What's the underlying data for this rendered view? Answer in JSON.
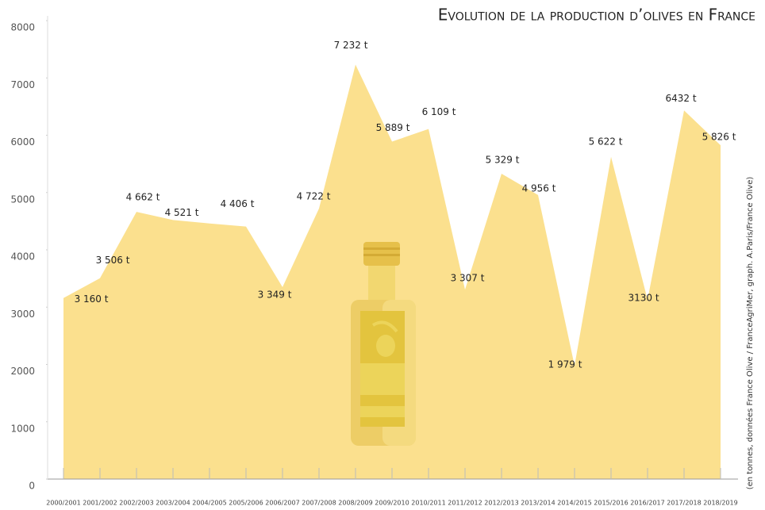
{
  "chart_data": {
    "type": "area",
    "title": "Evolution de la production d’olives en France",
    "note": "(en tonnes, données France Olive / FranceAgriMer, graph. A.Paris/France Olive)",
    "categories": [
      "2000/2001",
      "2001/2002",
      "2002/2003",
      "2003/2004",
      "2004/2005",
      "2005/2006",
      "2006/2007",
      "2007/2008",
      "2008/2009",
      "2009/2010",
      "2010/2011",
      "2011/2012",
      "2012/2013",
      "2013/2014",
      "2014/2015",
      "2015/2016",
      "2016/2017",
      "2017/2018",
      "2018/2019"
    ],
    "values": [
      3160,
      3506,
      4662,
      4521,
      4460,
      4406,
      3349,
      4722,
      7232,
      5889,
      6109,
      3307,
      5329,
      4956,
      1979,
      5622,
      3130,
      6432,
      5826
    ],
    "value_labels": [
      "3 160 t",
      "3 506 t",
      "4 662 t",
      "4 521 t",
      null,
      "4 406 t",
      "3 349 t",
      "4 722 t",
      "7 232 t",
      "5 889 t",
      "6 109 t",
      "3 307 t",
      "5 329 t",
      "4 956 t",
      "1 979 t",
      "5 622 t",
      "3130 t",
      "6432 t",
      "5 826 t"
    ],
    "color": "#fbe08e",
    "ylim": [
      0,
      8000
    ],
    "yticks": [
      0,
      1000,
      2000,
      3000,
      4000,
      5000,
      6000,
      7000,
      8000
    ]
  }
}
